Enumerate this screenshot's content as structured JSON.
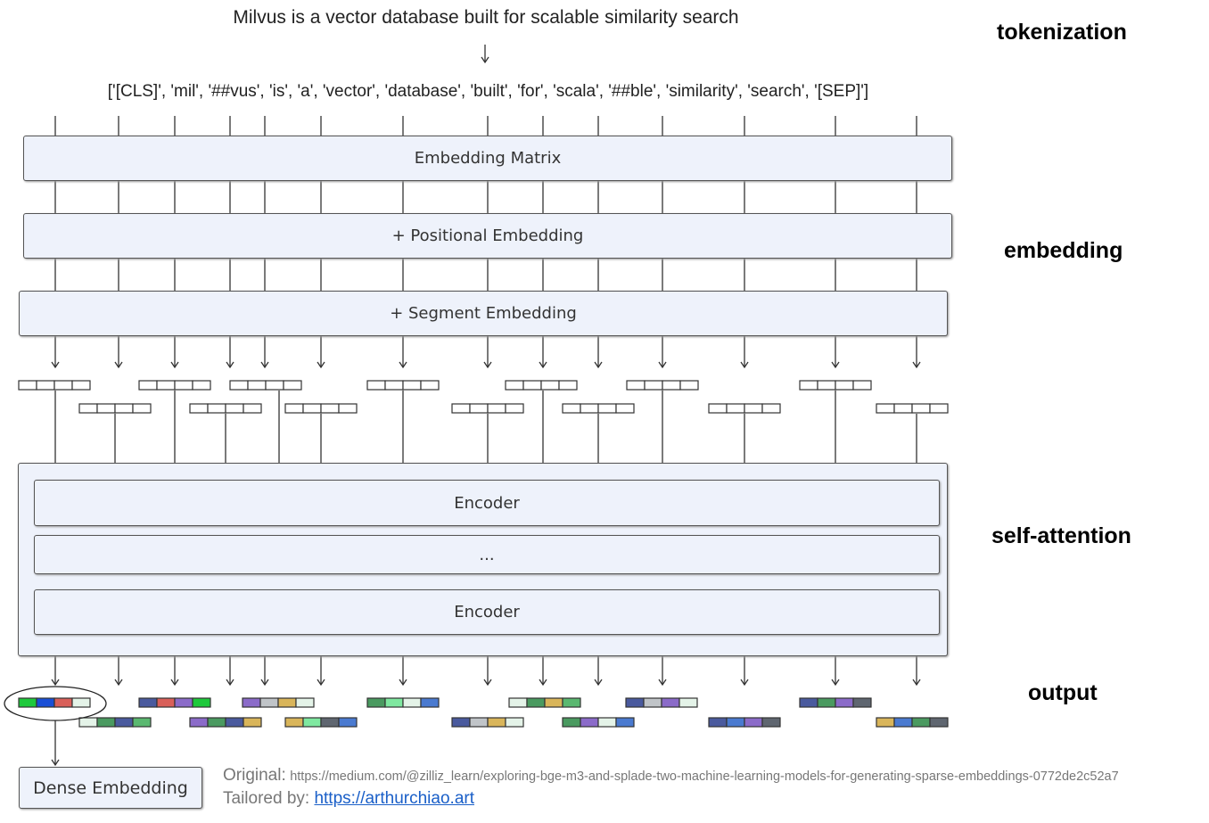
{
  "sentence": "Milvus is a vector database built for scalable similarity search",
  "tokens": "['[CLS]', 'mil', '##vus', 'is', 'a', 'vector', 'database', 'built', 'for', 'scala', '##ble', 'similarity', 'search', '[SEP]']",
  "stages": {
    "tokenization": "tokenization",
    "embedding": "embedding",
    "self_attention": "self-attention",
    "output": "output"
  },
  "blocks": {
    "embedding_matrix": "Embedding Matrix",
    "positional": "+ Positional Embedding",
    "segment": "+ Segment Embedding",
    "encoder_top": "Encoder",
    "ellipsis": "...",
    "encoder_bottom": "Encoder"
  },
  "dense_embedding": "Dense Embedding",
  "footer": {
    "original_label": "Original:",
    "original_url": "https://medium.com/@zilliz_learn/exploring-bge-m3-and-splade-two-machine-learning-models-for-generating-sparse-embeddings-0772de2c52a7",
    "tailored_label": "Tailored by:",
    "tailored_url": "https://arthurchiao.art"
  },
  "palette": {
    "green": "#1ec93c",
    "blue": "#1a4fd6",
    "red": "#d9605a",
    "pale": "#e4f3e8",
    "navy": "#4a5a9e",
    "purple": "#8b6bc9",
    "grey": "#c0c4c8",
    "gold": "#d9b55a",
    "darkgreen": "#4a9a60",
    "lightgreen": "#7fe8a0",
    "midgreen": "#5ab870",
    "lblue": "#4a7ad0",
    "dgrey": "#5f6670"
  },
  "output_vectors": [
    [
      "green",
      "blue",
      "red",
      "pale"
    ],
    [
      "pale",
      "darkgreen",
      "navy",
      "midgreen"
    ],
    [
      "navy",
      "red",
      "purple",
      "green"
    ],
    [
      "purple",
      "darkgreen",
      "navy",
      "gold"
    ],
    [
      "purple",
      "grey",
      "gold",
      "pale"
    ],
    [
      "gold",
      "lightgreen",
      "dgrey",
      "lblue"
    ],
    [
      "darkgreen",
      "lightgreen",
      "pale",
      "lblue"
    ],
    [
      "navy",
      "grey",
      "gold",
      "pale"
    ],
    [
      "pale",
      "darkgreen",
      "gold",
      "midgreen"
    ],
    [
      "darkgreen",
      "purple",
      "pale",
      "lblue"
    ],
    [
      "navy",
      "grey",
      "purple",
      "pale"
    ],
    [
      "navy",
      "lblue",
      "purple",
      "dgrey"
    ],
    [
      "navy",
      "darkgreen",
      "purple",
      "dgrey"
    ],
    [
      "gold",
      "lblue",
      "darkgreen",
      "dgrey"
    ]
  ]
}
